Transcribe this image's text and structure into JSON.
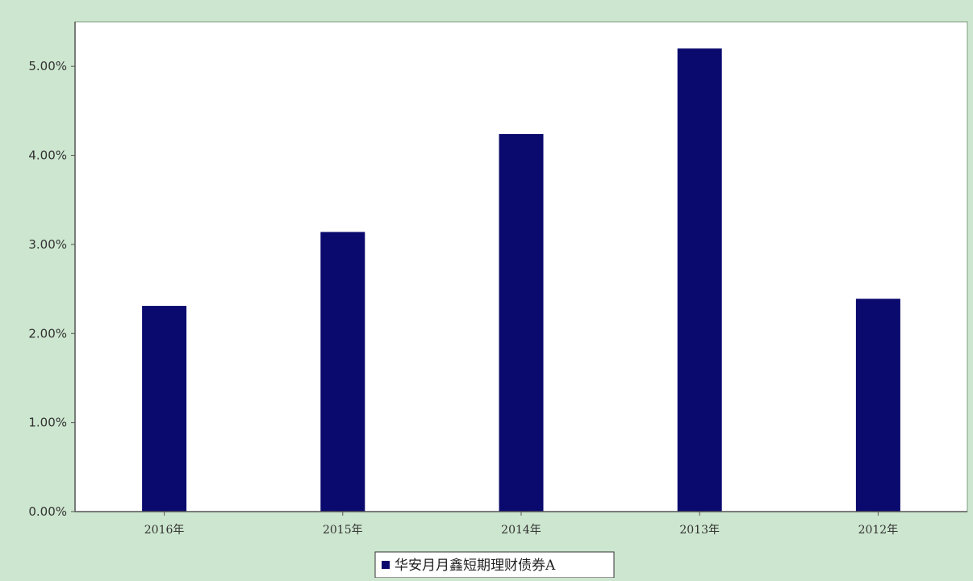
{
  "colors": {
    "background": "#cde6cf",
    "plot_background": "#ffffff",
    "bar": "#0a0a6e",
    "axis": "#555555"
  },
  "chart_data": {
    "type": "bar",
    "categories": [
      "2016年",
      "2015年",
      "2014年",
      "2013年",
      "2012年"
    ],
    "series": [
      {
        "name": "华安月月鑫短期理财债券A",
        "values": [
          2.31,
          3.14,
          4.24,
          5.2,
          2.39
        ]
      }
    ],
    "ylim": [
      0,
      5.5
    ],
    "yticks": [
      0,
      1,
      2,
      3,
      4,
      5
    ],
    "ytick_labels": [
      "0.00%",
      "1.00%",
      "2.00%",
      "3.00%",
      "4.00%",
      "5.00%"
    ],
    "unit": "%",
    "grid": false,
    "legend": "bottom-center"
  }
}
